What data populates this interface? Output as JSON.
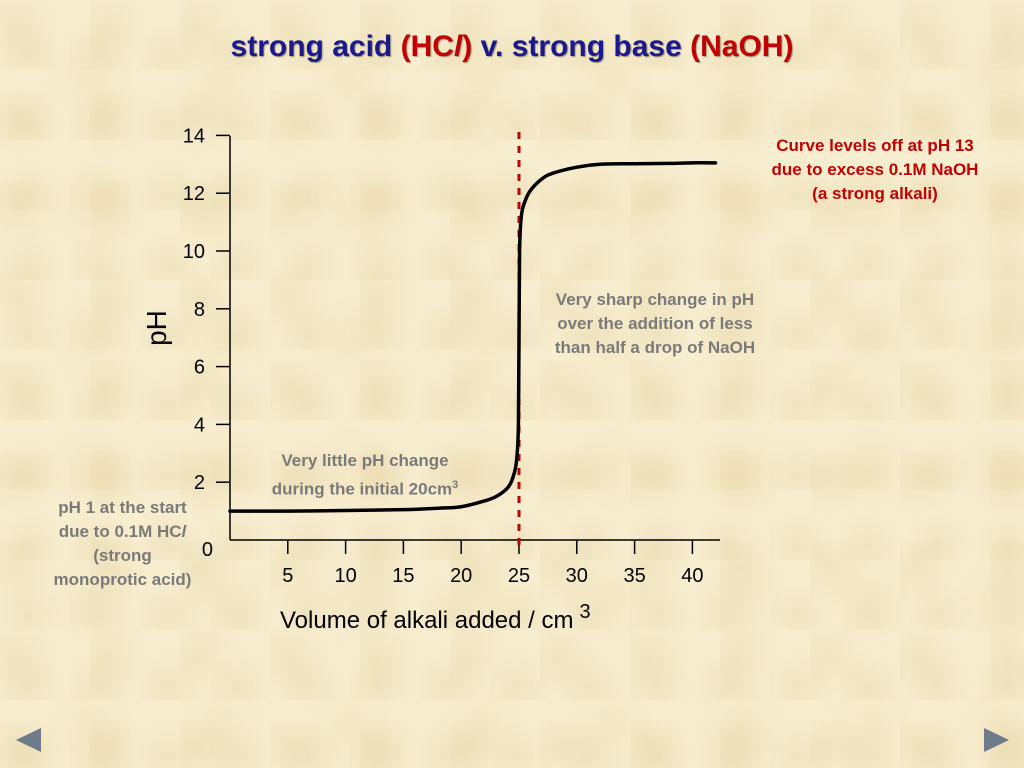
{
  "title": {
    "part1": "strong acid ",
    "paren_open": "(",
    "acid_formula": "HC",
    "acid_italic": "l",
    "paren_close": ")",
    "part2": " v. strong base ",
    "base": "(NaOH)"
  },
  "annotations": {
    "curve_levels": [
      "Curve levels off at pH 13",
      "due to excess 0.1M NaOH",
      "(a strong alkali)"
    ],
    "sharp_change": [
      "Very sharp change in pH",
      "over the addition of less",
      "than half a drop of NaOH"
    ],
    "little_change": [
      "Very little pH change",
      "during the initial 20cm"
    ],
    "little_change_sup": "3",
    "start_note": [
      "pH 1 at the start",
      "due to 0.1M HC",
      "(strong",
      "monoprotic acid)"
    ],
    "start_note_italic": "l"
  },
  "colors": {
    "title_blue": "#1a1a8c",
    "accent_red": "#c00000",
    "note_gray": "#7a7a7a",
    "curve": "#000000",
    "equivalence_line": "#c00000"
  },
  "chart_data": {
    "type": "line",
    "ylabel": "pH",
    "xlabel": "Volume of alkali added / cm",
    "xlabel_sup": "3",
    "x_ticks": [
      5,
      10,
      15,
      20,
      25,
      30,
      35,
      40
    ],
    "y_ticks": [
      0,
      2,
      4,
      6,
      8,
      10,
      12,
      14
    ],
    "xlim": [
      0,
      42
    ],
    "ylim": [
      0,
      14
    ],
    "equivalence_x": 25,
    "series": [
      {
        "x": [
          0,
          5,
          10,
          15,
          18,
          20,
          22,
          23,
          24,
          24.5,
          24.8,
          24.95,
          25,
          25.05,
          25.2,
          25.5,
          26,
          27,
          28,
          30,
          32,
          35,
          38,
          40,
          42
        ],
        "y": [
          1.0,
          1.0,
          1.02,
          1.05,
          1.1,
          1.15,
          1.35,
          1.5,
          1.8,
          2.2,
          2.8,
          4.0,
          7.0,
          10.0,
          11.2,
          11.7,
          12.1,
          12.5,
          12.7,
          12.9,
          13.0,
          13.02,
          13.03,
          13.05,
          13.05
        ]
      }
    ],
    "grid": false
  },
  "nav": {
    "prev_icon": "triangle-left",
    "next_icon": "triangle-right"
  }
}
